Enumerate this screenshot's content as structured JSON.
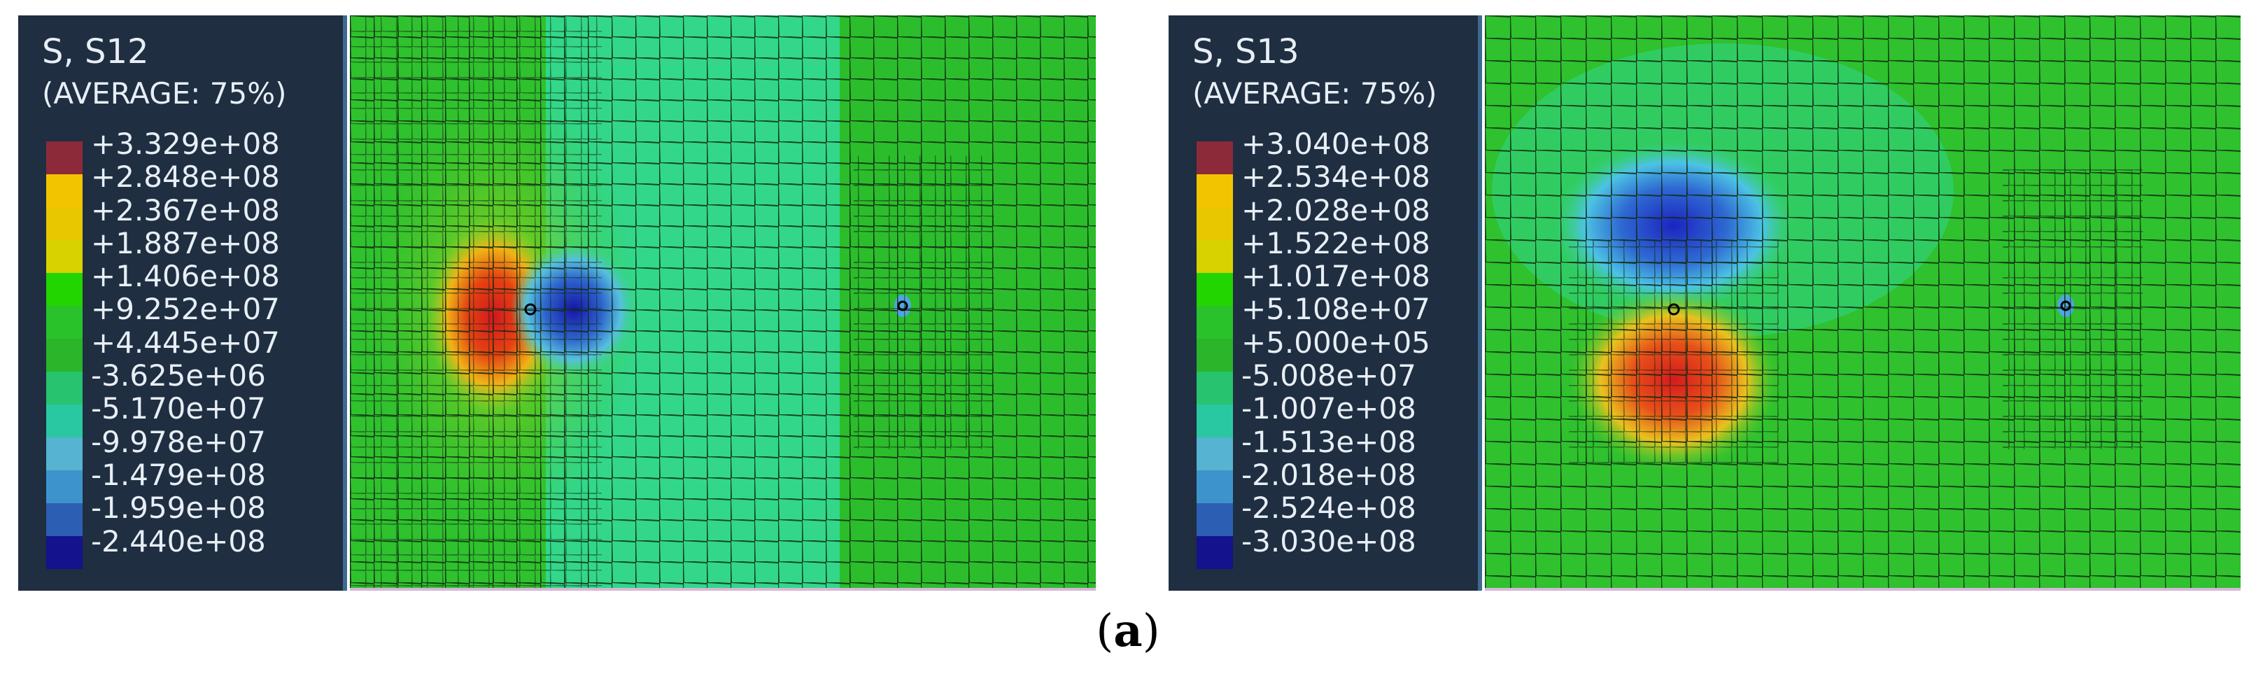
{
  "figure": {
    "caption_open": "(",
    "caption_letter": "a",
    "caption_close": ")"
  },
  "panels": [
    {
      "component": "S, S12",
      "average": "(AVERAGE: 75%)",
      "legend": [
        "+3.329e+08",
        "+2.848e+08",
        "+2.367e+08",
        "+1.887e+08",
        "+1.406e+08",
        "+9.252e+07",
        "+4.445e+07",
        "-3.625e+06",
        "-5.170e+07",
        "-9.978e+07",
        "-1.479e+08",
        "-1.959e+08",
        "-2.440e+08"
      ],
      "colors": [
        "#8c2a3a",
        "#f2c400",
        "#e8c700",
        "#d8d200",
        "#22d400",
        "#29c22a",
        "#2ab52b",
        "#28c36e",
        "#2ac8a2",
        "#57b3d2",
        "#3d94cc",
        "#2c5fb4",
        "#14128c"
      ]
    },
    {
      "component": "S, S13",
      "average": "(AVERAGE: 75%)",
      "legend": [
        "+3.040e+08",
        "+2.534e+08",
        "+2.028e+08",
        "+1.522e+08",
        "+1.017e+08",
        "+5.108e+07",
        "+5.000e+05",
        "-5.008e+07",
        "-1.007e+08",
        "-1.513e+08",
        "-2.018e+08",
        "-2.524e+08",
        "-3.030e+08"
      ],
      "colors": [
        "#8c2a3a",
        "#f2c400",
        "#e8c700",
        "#d8d200",
        "#22d400",
        "#29c22a",
        "#2ab52b",
        "#28c36e",
        "#2ac8a2",
        "#57b3d2",
        "#3d94cc",
        "#2c5fb4",
        "#14128c"
      ]
    }
  ]
}
